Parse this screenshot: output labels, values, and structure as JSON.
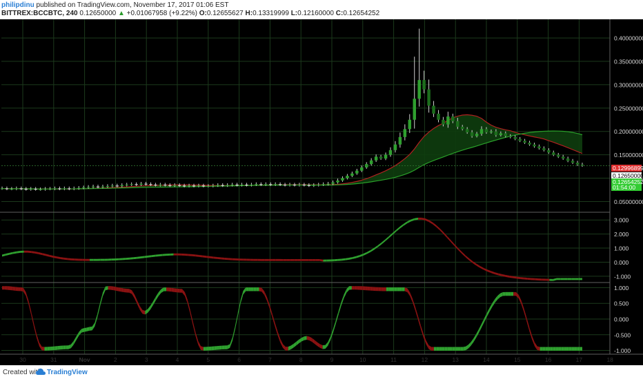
{
  "header": {
    "user": "philipdinu",
    "published": "published on TradingView.com, November 17, 2017 01:06 EST",
    "symbol": "BITTREX:BCCBTC, 240",
    "last": "0.12650000",
    "change": "+0.01067958 (+9.22%)",
    "o_label": "O:",
    "o_value": "0.12655627",
    "h_label": "H:",
    "h_value": "0.13319999",
    "l_label": "L:",
    "l_value": "0.12160000",
    "c_label": "C:",
    "c_value": "0.12654252"
  },
  "footer": {
    "created": "Created with",
    "brand": "TradingView"
  },
  "colors": {
    "bg": "#000000",
    "grid": "#1c3a1c",
    "up": "#2fa02f",
    "down": "#8b1212",
    "wick": "#cfcfcf",
    "cloud": "#0e3d0e",
    "ma_slow": "#2aa12a",
    "ma_fast": "#b02020",
    "axis_text": "#d8d8d8",
    "separator": "#606060"
  },
  "chart_data": [
    {
      "type": "candlestick",
      "panel": "price",
      "ylim": [
        0.03,
        0.44
      ],
      "y_ticks": [
        "0.05000000",
        "0.10000000",
        "0.15000000",
        "0.20000000",
        "0.25000000",
        "0.30000000",
        "0.35000000",
        "0.40000000"
      ],
      "x_ticks": [
        "30",
        "31",
        "Nov",
        "2",
        "3",
        "4",
        "5",
        "6",
        "7",
        "8",
        "9",
        "10",
        "11",
        "12",
        "13",
        "14",
        "15",
        "16",
        "17",
        "18"
      ],
      "price_labels": [
        {
          "value": "0.12996899",
          "style": "red"
        },
        {
          "value": "0.12650000",
          "style": "white"
        },
        {
          "value": "0.12654252",
          "style": "green"
        },
        {
          "value": "01:54:00",
          "style": "green"
        }
      ],
      "candles_approx": "4-hour candles from Oct 30 to Nov 17; close rises from ~0.08 to a peak near 0.31 on Nov 12 (high ~0.42), then declines to ~0.127",
      "close": [
        0.078,
        0.077,
        0.077,
        0.078,
        0.077,
        0.076,
        0.077,
        0.076,
        0.076,
        0.077,
        0.077,
        0.078,
        0.077,
        0.078,
        0.077,
        0.078,
        0.079,
        0.08,
        0.081,
        0.082,
        0.081,
        0.082,
        0.083,
        0.084,
        0.083,
        0.085,
        0.086,
        0.087,
        0.086,
        0.088,
        0.087,
        0.086,
        0.085,
        0.086,
        0.085,
        0.084,
        0.085,
        0.084,
        0.083,
        0.084,
        0.083,
        0.084,
        0.083,
        0.083,
        0.084,
        0.085,
        0.084,
        0.085,
        0.086,
        0.085,
        0.086,
        0.085,
        0.086,
        0.087,
        0.086,
        0.087,
        0.086,
        0.087,
        0.086,
        0.085,
        0.086,
        0.085,
        0.086,
        0.085,
        0.084,
        0.085,
        0.086,
        0.087,
        0.088,
        0.091,
        0.095,
        0.1,
        0.105,
        0.11,
        0.116,
        0.123,
        0.13,
        0.138,
        0.146,
        0.142,
        0.15,
        0.16,
        0.172,
        0.188,
        0.205,
        0.225,
        0.27,
        0.31,
        0.29,
        0.255,
        0.238,
        0.225,
        0.215,
        0.232,
        0.222,
        0.21,
        0.205,
        0.198,
        0.19,
        0.195,
        0.205,
        0.198,
        0.2,
        0.192,
        0.196,
        0.19,
        0.188,
        0.184,
        0.18,
        0.176,
        0.172,
        0.168,
        0.164,
        0.16,
        0.155,
        0.15,
        0.146,
        0.142,
        0.137,
        0.133,
        0.129,
        0.127
      ],
      "ma_fast_approx": "red moving average rising to ~0.19 then ~0.165 at end",
      "ma_slow_approx": "green moving average rising to ~0.14 at end",
      "grid": true
    },
    {
      "type": "line",
      "panel": "oscillator-1",
      "ylim": [
        -1.35,
        3.45
      ],
      "y_ticks": [
        "-1.000",
        "0.000",
        "1.000",
        "2.000",
        "3.000"
      ],
      "series": [
        {
          "values_approx": "near 0 to 0.8 until Nov 10, rises to ~3.1 at Nov 12, falls to ~-1.3 by Nov 17"
        }
      ]
    },
    {
      "type": "line",
      "panel": "oscillator-2",
      "ylim": [
        -1.12,
        1.12
      ],
      "y_ticks": [
        "-1.000",
        "-0.500",
        "0.000",
        "0.500",
        "1.000"
      ],
      "series": [
        {
          "values_approx": "oscillates between -1 and 1"
        }
      ]
    }
  ]
}
